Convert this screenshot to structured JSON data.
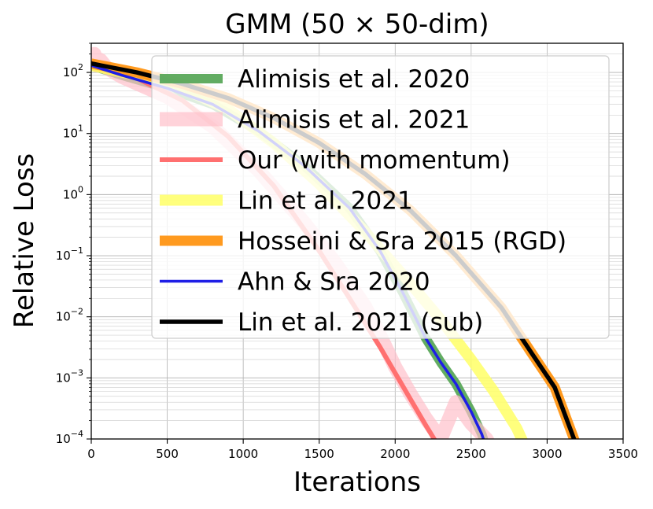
{
  "chart_data": {
    "type": "line",
    "title": "GMM (50 × 50-dim)",
    "xlabel": "Iterations",
    "ylabel": "Relative Loss",
    "xlim": [
      0,
      3500
    ],
    "ylim": [
      0.0001,
      300
    ],
    "yscale": "log",
    "grid": true,
    "legend_position": "upper-right",
    "x_ticks": [
      "0",
      "500",
      "1000",
      "1500",
      "2000",
      "2500",
      "3000",
      "3500"
    ],
    "y_ticks": [
      {
        "value": 0.0001,
        "base": "10",
        "exp": "−4"
      },
      {
        "value": 0.001,
        "base": "10",
        "exp": "−3"
      },
      {
        "value": 0.01,
        "base": "10",
        "exp": "−2"
      },
      {
        "value": 0.1,
        "base": "10",
        "exp": "−1"
      },
      {
        "value": 1,
        "base": "10",
        "exp": "0"
      },
      {
        "value": 10,
        "base": "10",
        "exp": "1"
      },
      {
        "value": 100,
        "base": "10",
        "exp": "2"
      }
    ],
    "series": [
      {
        "name": "Alimisis et al. 2020",
        "color": "#5aa85a",
        "width": 12,
        "opacity": 0.95,
        "x": [
          0,
          200,
          500,
          800,
          1100,
          1400,
          1700,
          1900,
          2050,
          2150,
          2200,
          2300,
          2400,
          2500,
          2570,
          2620
        ],
        "y": [
          130,
          90,
          55,
          30,
          11,
          3,
          0.6,
          0.12,
          0.025,
          0.008,
          0.0045,
          0.0018,
          0.0008,
          0.00028,
          0.00012,
          5e-05
        ]
      },
      {
        "name": "Alimisis et al. 2021",
        "color": "#ffc0cb",
        "width": 18,
        "opacity": 0.7,
        "x": [
          0,
          20,
          40,
          60,
          100,
          200,
          500,
          800,
          1100,
          1400,
          1600,
          1800,
          1900,
          2000,
          2100,
          2200,
          2300,
          2400,
          2500,
          2600,
          2650
        ],
        "y": [
          170,
          200,
          130,
          160,
          120,
          85,
          40,
          13,
          2.5,
          0.35,
          0.08,
          0.015,
          0.005,
          0.0015,
          0.00055,
          0.00022,
          0.0001,
          0.0004,
          0.00018,
          0.0001,
          6e-05
        ]
      },
      {
        "name": "Our (with momentum)",
        "color": "#ff7070",
        "width": 6,
        "opacity": 1,
        "x": [
          0,
          300,
          600,
          900,
          1200,
          1500,
          1700,
          1900,
          2000,
          2100,
          2200,
          2280
        ],
        "y": [
          120,
          80,
          35,
          9,
          1.4,
          0.12,
          0.02,
          0.0032,
          0.0012,
          0.00045,
          0.00017,
          8e-05
        ]
      },
      {
        "name": "Lin et al. 2021",
        "color": "#ffff66",
        "width": 14,
        "opacity": 0.85,
        "x": [
          0,
          300,
          600,
          900,
          1200,
          1500,
          1800,
          2100,
          2300,
          2500,
          2650,
          2800,
          2850
        ],
        "y": [
          130,
          90,
          55,
          25,
          7,
          1.5,
          0.25,
          0.035,
          0.009,
          0.002,
          0.0006,
          0.00015,
          8e-05
        ]
      },
      {
        "name": "Hosseini & Sra 2015 (RGD)",
        "color": "#ff9a1f",
        "width": 13,
        "opacity": 1,
        "x": [
          0,
          300,
          600,
          900,
          1200,
          1500,
          1800,
          2100,
          2400,
          2700,
          2900,
          3050,
          3200
        ],
        "y": [
          140,
          100,
          65,
          38,
          18,
          7,
          2.2,
          0.55,
          0.1,
          0.014,
          0.0025,
          0.0007,
          7e-05
        ]
      },
      {
        "name": "Ahn & Sra 2020",
        "color": "#1e1ee6",
        "width": 3.5,
        "opacity": 1,
        "x": [
          0,
          200,
          500,
          800,
          1100,
          1400,
          1700,
          1900,
          2050,
          2150,
          2200,
          2300,
          2400,
          2500,
          2570,
          2620
        ],
        "y": [
          130,
          90,
          55,
          30,
          11,
          3,
          0.6,
          0.12,
          0.025,
          0.008,
          0.0045,
          0.0018,
          0.0008,
          0.00028,
          0.00012,
          5e-05
        ]
      },
      {
        "name": "Lin et al. 2021 (sub)",
        "color": "#000000",
        "width": 5.5,
        "opacity": 1,
        "x": [
          0,
          300,
          600,
          900,
          1200,
          1500,
          1800,
          2100,
          2400,
          2700,
          2900,
          3050,
          3200
        ],
        "y": [
          140,
          100,
          65,
          38,
          18,
          7,
          2.2,
          0.55,
          0.1,
          0.014,
          0.0025,
          0.0007,
          7e-05
        ]
      }
    ]
  }
}
